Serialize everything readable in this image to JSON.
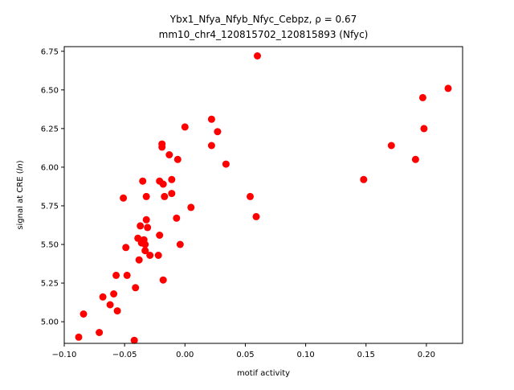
{
  "chart_data": {
    "type": "scatter",
    "title_line1": "Ybx1_Nfya_Nfyb_Nfyc_Cebpz, ρ = 0.67",
    "title_line2": "mm10_chr4_120815702_120815893 (Nfyc)",
    "xlabel": "motif activity",
    "ylabel": "signal at CRE (ln)",
    "xlim": [
      -0.1,
      0.23
    ],
    "ylim": [
      4.86,
      6.78
    ],
    "xticks": [
      -0.1,
      -0.05,
      0.0,
      0.05,
      0.1,
      0.15,
      0.2
    ],
    "xtick_labels": [
      "−0.10",
      "−0.05",
      "0.00",
      "0.05",
      "0.10",
      "0.15",
      "0.20"
    ],
    "yticks": [
      5.0,
      5.25,
      5.5,
      5.75,
      6.0,
      6.25,
      6.5,
      6.75
    ],
    "ytick_labels": [
      "5.00",
      "5.25",
      "5.50",
      "5.75",
      "6.00",
      "6.25",
      "6.50",
      "6.75"
    ],
    "grid": false,
    "marker_color": "#ff0000",
    "points": [
      {
        "x": -0.088,
        "y": 4.9
      },
      {
        "x": -0.084,
        "y": 5.05
      },
      {
        "x": -0.071,
        "y": 4.93
      },
      {
        "x": -0.068,
        "y": 5.16
      },
      {
        "x": -0.062,
        "y": 5.11
      },
      {
        "x": -0.059,
        "y": 5.18
      },
      {
        "x": -0.057,
        "y": 5.3
      },
      {
        "x": -0.056,
        "y": 5.07
      },
      {
        "x": -0.051,
        "y": 5.8
      },
      {
        "x": -0.049,
        "y": 5.48
      },
      {
        "x": -0.048,
        "y": 5.3
      },
      {
        "x": -0.042,
        "y": 4.88
      },
      {
        "x": -0.041,
        "y": 5.22
      },
      {
        "x": -0.039,
        "y": 5.54
      },
      {
        "x": -0.038,
        "y": 5.4
      },
      {
        "x": -0.037,
        "y": 5.62
      },
      {
        "x": -0.036,
        "y": 5.51
      },
      {
        "x": -0.035,
        "y": 5.91
      },
      {
        "x": -0.034,
        "y": 5.53
      },
      {
        "x": -0.033,
        "y": 5.5
      },
      {
        "x": -0.033,
        "y": 5.46
      },
      {
        "x": -0.032,
        "y": 5.81
      },
      {
        "x": -0.032,
        "y": 5.66
      },
      {
        "x": -0.031,
        "y": 5.61
      },
      {
        "x": -0.029,
        "y": 5.43
      },
      {
        "x": -0.022,
        "y": 5.43
      },
      {
        "x": -0.021,
        "y": 5.91
      },
      {
        "x": -0.021,
        "y": 5.56
      },
      {
        "x": -0.019,
        "y": 6.15
      },
      {
        "x": -0.019,
        "y": 6.13
      },
      {
        "x": -0.018,
        "y": 5.89
      },
      {
        "x": -0.018,
        "y": 5.27
      },
      {
        "x": -0.017,
        "y": 5.81
      },
      {
        "x": -0.013,
        "y": 6.08
      },
      {
        "x": -0.011,
        "y": 5.92
      },
      {
        "x": -0.011,
        "y": 5.83
      },
      {
        "x": -0.007,
        "y": 5.67
      },
      {
        "x": -0.006,
        "y": 6.05
      },
      {
        "x": -0.004,
        "y": 5.5
      },
      {
        "x": 0.0,
        "y": 6.26
      },
      {
        "x": 0.005,
        "y": 5.74
      },
      {
        "x": 0.022,
        "y": 6.31
      },
      {
        "x": 0.022,
        "y": 6.14
      },
      {
        "x": 0.027,
        "y": 6.23
      },
      {
        "x": 0.034,
        "y": 6.02
      },
      {
        "x": 0.054,
        "y": 5.81
      },
      {
        "x": 0.059,
        "y": 5.68
      },
      {
        "x": 0.06,
        "y": 6.72
      },
      {
        "x": 0.148,
        "y": 5.92
      },
      {
        "x": 0.171,
        "y": 6.14
      },
      {
        "x": 0.191,
        "y": 6.05
      },
      {
        "x": 0.197,
        "y": 6.45
      },
      {
        "x": 0.198,
        "y": 6.25
      },
      {
        "x": 0.218,
        "y": 6.51
      }
    ]
  }
}
